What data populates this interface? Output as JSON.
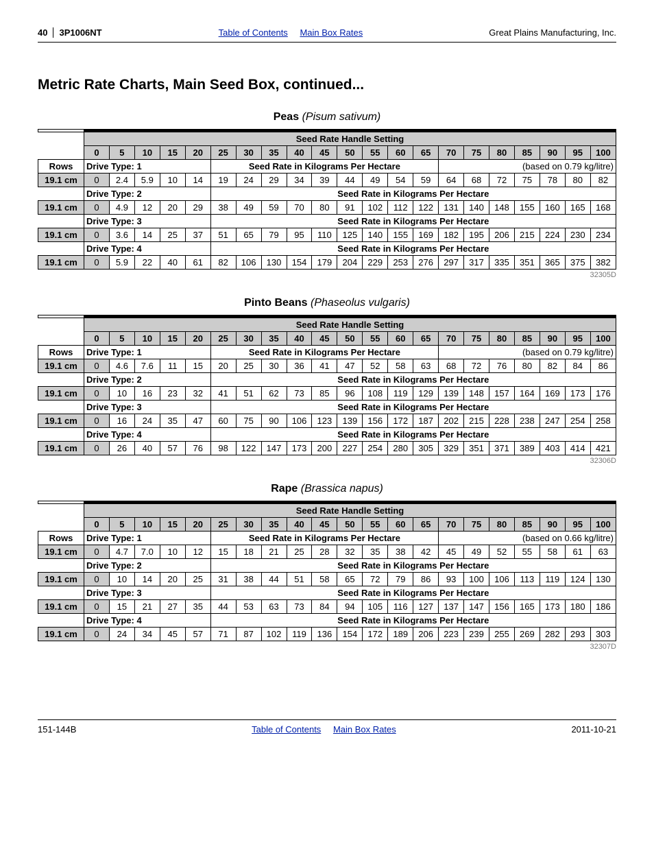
{
  "header": {
    "page": "40",
    "model": "3P1006NT",
    "link_toc": "Table of Contents",
    "link_rates": "Main Box Rates",
    "manufacturer": "Great Plains Manufacturing, Inc."
  },
  "title": "Metric Rate Charts, Main Seed Box, continued...",
  "settings_header": "Seed Rate Handle Setting",
  "settings": [
    "0",
    "5",
    "10",
    "15",
    "20",
    "25",
    "30",
    "35",
    "40",
    "45",
    "50",
    "55",
    "60",
    "65",
    "70",
    "75",
    "80",
    "85",
    "90",
    "95",
    "100"
  ],
  "rows_label": "Rows",
  "row_spacing": "19.1 cm",
  "drive_labels": [
    "Drive Type: 1",
    "Drive Type: 2",
    "Drive Type: 3",
    "Drive Type: 4"
  ],
  "rate_label": "Seed Rate in Kilograms Per Hectare",
  "crops": [
    {
      "name": "Peas",
      "sci": "(Pisum sativum)",
      "based": "(based on 0.79 kg/litre)",
      "code": "32305D",
      "rows": [
        [
          "0",
          "2.4",
          "5.9",
          "10",
          "14",
          "19",
          "24",
          "29",
          "34",
          "39",
          "44",
          "49",
          "54",
          "59",
          "64",
          "68",
          "72",
          "75",
          "78",
          "80",
          "82"
        ],
        [
          "0",
          "4.9",
          "12",
          "20",
          "29",
          "38",
          "49",
          "59",
          "70",
          "80",
          "91",
          "102",
          "112",
          "122",
          "131",
          "140",
          "148",
          "155",
          "160",
          "165",
          "168"
        ],
        [
          "0",
          "3.6",
          "14",
          "25",
          "37",
          "51",
          "65",
          "79",
          "95",
          "110",
          "125",
          "140",
          "155",
          "169",
          "182",
          "195",
          "206",
          "215",
          "224",
          "230",
          "234"
        ],
        [
          "0",
          "5.9",
          "22",
          "40",
          "61",
          "82",
          "106",
          "130",
          "154",
          "179",
          "204",
          "229",
          "253",
          "276",
          "297",
          "317",
          "335",
          "351",
          "365",
          "375",
          "382"
        ]
      ]
    },
    {
      "name": "Pinto Beans",
      "sci": "(Phaseolus vulgaris)",
      "based": "(based on 0.79 kg/litre)",
      "code": "32306D",
      "rows": [
        [
          "0",
          "4.6",
          "7.6",
          "11",
          "15",
          "20",
          "25",
          "30",
          "36",
          "41",
          "47",
          "52",
          "58",
          "63",
          "68",
          "72",
          "76",
          "80",
          "82",
          "84",
          "86"
        ],
        [
          "0",
          "10",
          "16",
          "23",
          "32",
          "41",
          "51",
          "62",
          "73",
          "85",
          "96",
          "108",
          "119",
          "129",
          "139",
          "148",
          "157",
          "164",
          "169",
          "173",
          "176"
        ],
        [
          "0",
          "16",
          "24",
          "35",
          "47",
          "60",
          "75",
          "90",
          "106",
          "123",
          "139",
          "156",
          "172",
          "187",
          "202",
          "215",
          "228",
          "238",
          "247",
          "254",
          "258"
        ],
        [
          "0",
          "26",
          "40",
          "57",
          "76",
          "98",
          "122",
          "147",
          "173",
          "200",
          "227",
          "254",
          "280",
          "305",
          "329",
          "351",
          "371",
          "389",
          "403",
          "414",
          "421"
        ]
      ]
    },
    {
      "name": "Rape",
      "sci": "(Brassica napus)",
      "based": "(based on 0.66 kg/litre)",
      "code": "32307D",
      "rows": [
        [
          "0",
          "4.7",
          "7.0",
          "10",
          "12",
          "15",
          "18",
          "21",
          "25",
          "28",
          "32",
          "35",
          "38",
          "42",
          "45",
          "49",
          "52",
          "55",
          "58",
          "61",
          "63"
        ],
        [
          "0",
          "10",
          "14",
          "20",
          "25",
          "31",
          "38",
          "44",
          "51",
          "58",
          "65",
          "72",
          "79",
          "86",
          "93",
          "100",
          "106",
          "113",
          "119",
          "124",
          "130"
        ],
        [
          "0",
          "15",
          "21",
          "27",
          "35",
          "44",
          "53",
          "63",
          "73",
          "84",
          "94",
          "105",
          "116",
          "127",
          "137",
          "147",
          "156",
          "165",
          "173",
          "180",
          "186"
        ],
        [
          "0",
          "24",
          "34",
          "45",
          "57",
          "71",
          "87",
          "102",
          "119",
          "136",
          "154",
          "172",
          "189",
          "206",
          "223",
          "239",
          "255",
          "269",
          "282",
          "293",
          "303"
        ]
      ]
    }
  ],
  "footer": {
    "doc": "151-144B",
    "date": "2011-10-21"
  }
}
